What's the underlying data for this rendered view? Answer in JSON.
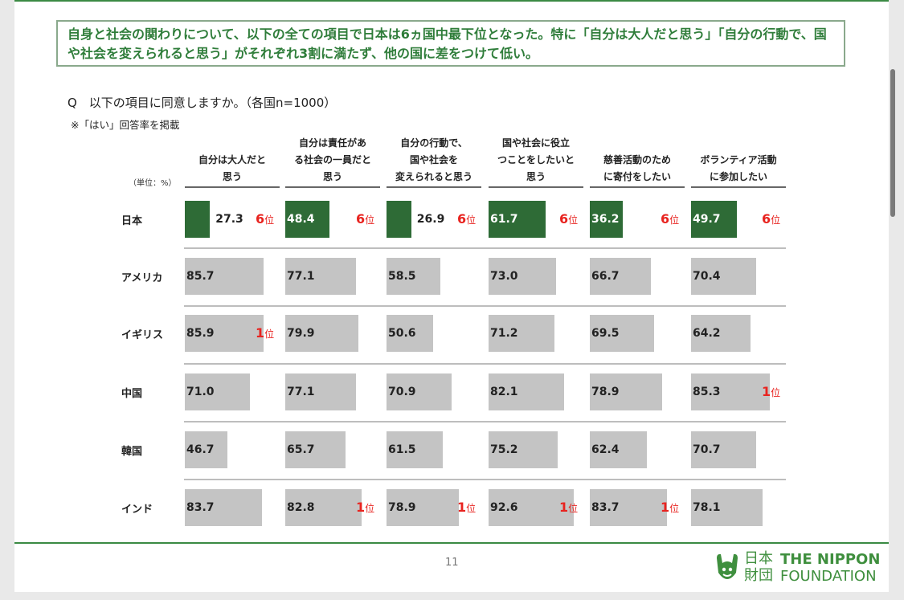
{
  "headline": "自身と社会の関わりについて、以下の全ての項目で日本は6ヵ国中最下位となった。特に「自分は大人だと思う」「自分の行動で、国や社会を変えられると思う」がそれぞれ3割に満たず、他の国に差をつけて低い。",
  "question": "Q　以下の項目に同意しますか。（各国n=1000）",
  "note": "※「はい」回答率を掲載",
  "unit_label": "（単位：%）",
  "rank_suffix": "位",
  "colors": {
    "japan_bar": "#2e6b36",
    "other_bar": "#c4c4c4",
    "rank": "#e8231f",
    "brand": "#3f8f3e"
  },
  "chart_data": {
    "type": "table",
    "columns": [
      "自分は大人だと思う",
      "自分は責任がある社会の一員だと思う",
      "自分の行動で、国や社会を変えられると思う",
      "国や社会に役立つことをしたいと思う",
      "慈善活動のために寄付をしたい",
      "ボランティア活動に参加したい"
    ],
    "column_lines": [
      [
        "自分は大人だと",
        "思う"
      ],
      [
        "自分は責任があ",
        "る社会の一員だと",
        "思う"
      ],
      [
        "自分の行動で、",
        "国や社会を",
        "変えられると思う"
      ],
      [
        "国や社会に役立",
        "つことをしたいと",
        "思う"
      ],
      [
        "慈善活動のため",
        "に寄付をしたい"
      ],
      [
        "ボランティア活動",
        "に参加したい"
      ]
    ],
    "rows": [
      {
        "country": "日本",
        "values": [
          "27.3",
          "48.4",
          "26.9",
          "61.7",
          "36.2",
          "49.7"
        ],
        "ranks": [
          "6",
          "6",
          "6",
          "6",
          "6",
          "6"
        ]
      },
      {
        "country": "アメリカ",
        "values": [
          "85.7",
          "77.1",
          "58.5",
          "73.0",
          "66.7",
          "70.4"
        ],
        "ranks": [
          null,
          null,
          null,
          null,
          null,
          null
        ]
      },
      {
        "country": "イギリス",
        "values": [
          "85.9",
          "79.9",
          "50.6",
          "71.2",
          "69.5",
          "64.2"
        ],
        "ranks": [
          "1",
          null,
          null,
          null,
          null,
          null
        ]
      },
      {
        "country": "中国",
        "values": [
          "71.0",
          "77.1",
          "70.9",
          "82.1",
          "78.9",
          "85.3"
        ],
        "ranks": [
          null,
          null,
          null,
          null,
          null,
          "1"
        ]
      },
      {
        "country": "韓国",
        "values": [
          "46.7",
          "65.7",
          "61.5",
          "75.2",
          "62.4",
          "70.7"
        ],
        "ranks": [
          null,
          null,
          null,
          null,
          null,
          null
        ]
      },
      {
        "country": "インド",
        "values": [
          "83.7",
          "82.8",
          "78.9",
          "92.6",
          "83.7",
          "78.1"
        ],
        "ranks": [
          null,
          "1",
          "1",
          "1",
          "1",
          null
        ]
      }
    ]
  },
  "footer": {
    "page_number": "11",
    "logo_jp": "日本財団",
    "logo_en_line1": "THE NIPPON",
    "logo_en_line2": "FOUNDATION"
  }
}
